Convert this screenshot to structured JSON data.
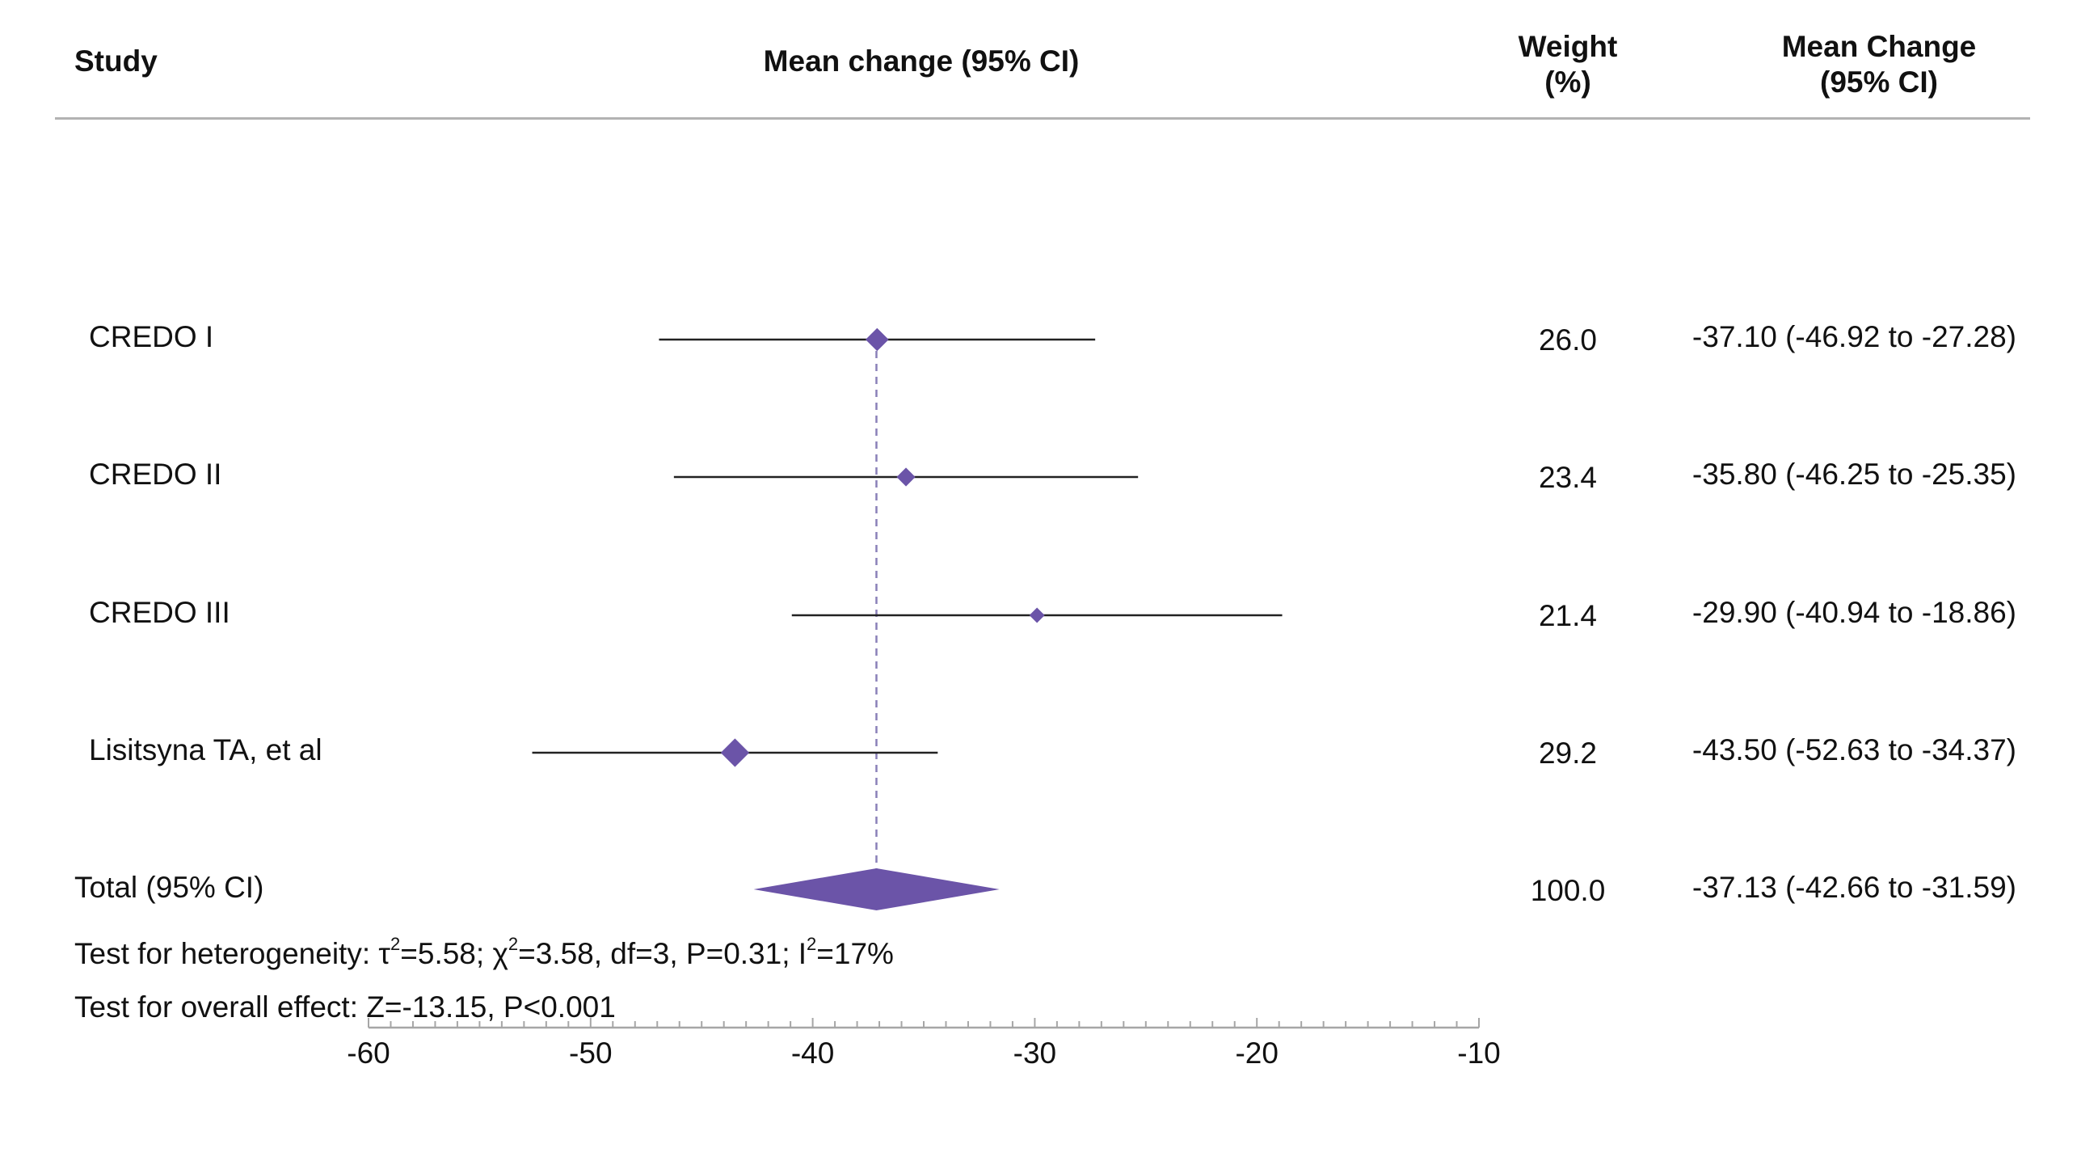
{
  "header": {
    "study": "Study",
    "mean_change_ci": "Mean change (95% CI)",
    "weight_line1": "Weight",
    "weight_line2": "(%)",
    "mc_line1": "Mean Change",
    "mc_line2": "(95% CI)"
  },
  "chart_data": {
    "type": "forest",
    "xlim": [
      -60,
      -10
    ],
    "x_ticks": [
      -60,
      -50,
      -40,
      -30,
      -20,
      -10
    ],
    "studies": [
      {
        "label": "CREDO I",
        "mean": -37.1,
        "lower": -46.92,
        "upper": -27.28,
        "weight": "26.0",
        "ci_text": "-37.10 (-46.92 to -27.28)"
      },
      {
        "label": "CREDO II",
        "mean": -35.8,
        "lower": -46.25,
        "upper": -25.35,
        "weight": "23.4",
        "ci_text": "-35.80 (-46.25 to -25.35)"
      },
      {
        "label": "CREDO III",
        "mean": -29.9,
        "lower": -40.94,
        "upper": -18.86,
        "weight": "21.4",
        "ci_text": "-29.90 (-40.94 to -18.86)"
      },
      {
        "label": "Lisitsyna TA, et al",
        "mean": -43.5,
        "lower": -52.63,
        "upper": -34.37,
        "weight": "29.2",
        "ci_text": "-43.50 (-52.63 to -34.37)"
      }
    ],
    "total": {
      "label": "Total (95% CI)",
      "mean": -37.13,
      "lower": -42.66,
      "upper": -31.59,
      "weight": "100.0",
      "ci_text": "-37.13 (-42.66 to -31.59)"
    },
    "colors": {
      "marker": "#6b54a8",
      "line": "#222222",
      "reference": "#8a80b8",
      "axis": "#a6a6a6"
    }
  },
  "footer": {
    "heterogeneity_prefix": "Test for heterogeneity: ",
    "tau_symbol": "τ",
    "tau_value": "=5.58; ",
    "chi_symbol": "χ",
    "chi_value": "=3.58, df=3, P=0.31; ",
    "i_symbol": "I",
    "i_value": "=17%",
    "sup": "2",
    "overall_effect": "Test for overall effect: Z=-13.15, P<0.001"
  }
}
